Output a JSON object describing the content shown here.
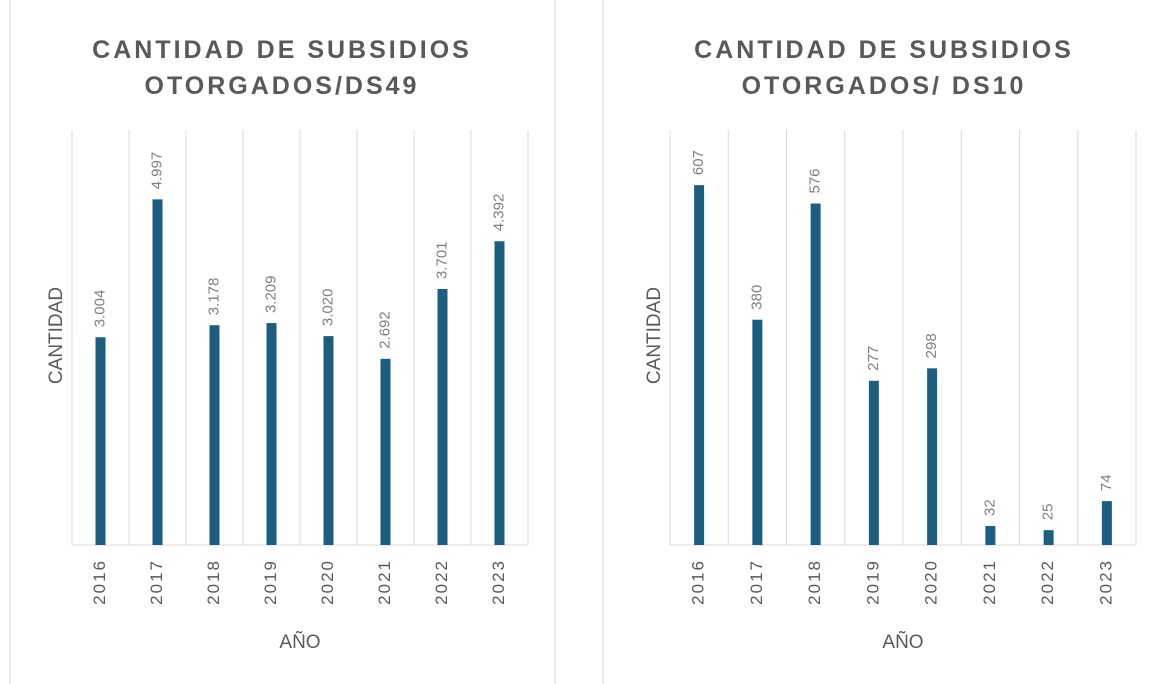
{
  "chart_data": [
    {
      "type": "bar",
      "title": [
        "CANTIDAD DE SUBSIDIOS",
        "OTORGADOS/DS49"
      ],
      "x_label": "AÑO",
      "y_label": "CANTIDAD",
      "categories": [
        "2016",
        "2017",
        "2018",
        "2019",
        "2020",
        "2021",
        "2022",
        "2023"
      ],
      "values": [
        3004,
        4997,
        3178,
        3209,
        3020,
        2692,
        3701,
        4392
      ],
      "value_labels": [
        "3.004",
        "4.997",
        "3.178",
        "3.209",
        "3.020",
        "2.692",
        "3.701",
        "4.392"
      ],
      "color": "#1b5e80",
      "ylim": [
        0,
        6000
      ],
      "grid": true
    },
    {
      "type": "bar",
      "title": [
        "CANTIDAD DE SUBSIDIOS",
        "OTORGADOS/ DS10"
      ],
      "x_label": "AÑO",
      "y_label": "CANTIDAD",
      "categories": [
        "2016",
        "2017",
        "2018",
        "2019",
        "2020",
        "2021",
        "2022",
        "2023"
      ],
      "values": [
        607,
        380,
        576,
        277,
        298,
        32,
        25,
        74
      ],
      "color": "#1b5e80",
      "ylim": [
        0,
        700
      ],
      "grid": true
    }
  ]
}
